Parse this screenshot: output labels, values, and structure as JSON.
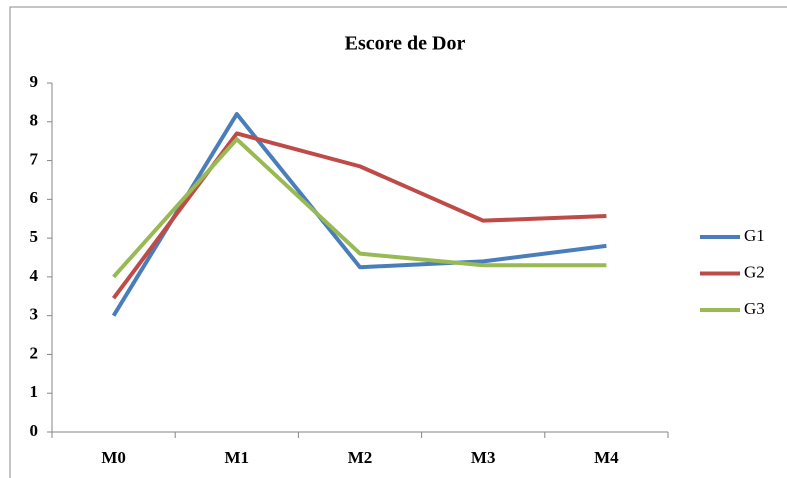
{
  "chart_data": {
    "type": "line",
    "title": "Escore de Dor",
    "categories": [
      "M0",
      "M1",
      "M2",
      "M3",
      "M4"
    ],
    "series": [
      {
        "name": "G1",
        "color": "#4a7ebb",
        "values": [
          3.0,
          8.2,
          4.25,
          4.4,
          4.8
        ]
      },
      {
        "name": "G2",
        "color": "#be4b48",
        "values": [
          3.45,
          7.7,
          6.85,
          5.45,
          5.57
        ]
      },
      {
        "name": "G3",
        "color": "#98b954",
        "values": [
          4.0,
          7.55,
          4.6,
          4.3,
          4.3
        ]
      }
    ],
    "ylim": [
      0,
      9
    ],
    "yticks": [
      0,
      1,
      2,
      3,
      4,
      5,
      6,
      7,
      8,
      9
    ],
    "grid": false,
    "legend": "right"
  }
}
